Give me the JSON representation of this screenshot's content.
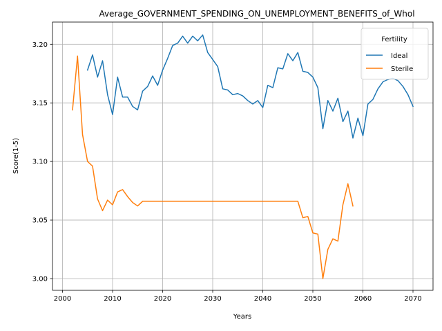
{
  "chart_data": {
    "type": "line",
    "title": "Average_GOVERNMENT_SPENDING_ON_UNEMPLOYMENT_BENEFITS_of_Whol",
    "xlabel": "Years",
    "ylabel": "Score(1-5)",
    "xlim": [
      1998,
      2074
    ],
    "ylim": [
      2.99,
      3.219
    ],
    "xticks": [
      2000,
      2010,
      2020,
      2030,
      2040,
      2050,
      2060,
      2070
    ],
    "yticks": [
      3.0,
      3.05,
      3.1,
      3.15,
      3.2
    ],
    "ytick_labels": [
      "3.00",
      "3.05",
      "3.10",
      "3.15",
      "3.20"
    ],
    "grid": true,
    "legend": {
      "title": "Fertility",
      "placement": "top-right"
    },
    "series": [
      {
        "name": "Ideal",
        "color": "#1f77b4",
        "x": [
          2005,
          2006,
          2007,
          2008,
          2009,
          2010,
          2011,
          2012,
          2013,
          2014,
          2015,
          2016,
          2017,
          2018,
          2019,
          2020,
          2021,
          2022,
          2023,
          2024,
          2025,
          2026,
          2027,
          2028,
          2029,
          2030,
          2031,
          2032,
          2033,
          2034,
          2035,
          2036,
          2037,
          2038,
          2039,
          2040,
          2041,
          2042,
          2043,
          2044,
          2045,
          2046,
          2047,
          2048,
          2049,
          2050,
          2051,
          2052,
          2053,
          2054,
          2055,
          2056,
          2057,
          2058,
          2059,
          2060,
          2061,
          2062,
          2063,
          2064,
          2065,
          2066,
          2067,
          2068,
          2069,
          2070
        ],
        "values": [
          3.178,
          3.191,
          3.172,
          3.186,
          3.157,
          3.14,
          3.172,
          3.155,
          3.155,
          3.147,
          3.144,
          3.16,
          3.164,
          3.173,
          3.165,
          3.178,
          3.188,
          3.199,
          3.201,
          3.207,
          3.201,
          3.207,
          3.203,
          3.208,
          3.193,
          3.187,
          3.181,
          3.162,
          3.161,
          3.157,
          3.158,
          3.156,
          3.152,
          3.149,
          3.152,
          3.146,
          3.165,
          3.163,
          3.18,
          3.179,
          3.192,
          3.186,
          3.193,
          3.177,
          3.176,
          3.172,
          3.163,
          3.128,
          3.152,
          3.143,
          3.154,
          3.134,
          3.143,
          3.12,
          3.137,
          3.122,
          3.149,
          3.153,
          3.162,
          3.168,
          3.17,
          3.171,
          3.169,
          3.164,
          3.157,
          3.147
        ]
      },
      {
        "name": "Sterile",
        "color": "#ff7f0e",
        "x": [
          2002,
          2003,
          2004,
          2005,
          2006,
          2007,
          2008,
          2009,
          2010,
          2011,
          2012,
          2013,
          2014,
          2015,
          2016,
          2017,
          2018,
          2019,
          2020,
          2021,
          2022,
          2023,
          2024,
          2025,
          2026,
          2027,
          2028,
          2029,
          2030,
          2031,
          2032,
          2033,
          2034,
          2035,
          2036,
          2037,
          2038,
          2039,
          2040,
          2041,
          2042,
          2043,
          2044,
          2045,
          2046,
          2047,
          2048,
          2049,
          2050,
          2051,
          2052,
          2053,
          2054,
          2055,
          2056,
          2057,
          2058
        ],
        "values": [
          3.144,
          3.19,
          3.123,
          3.1,
          3.096,
          3.068,
          3.058,
          3.067,
          3.063,
          3.074,
          3.076,
          3.07,
          3.065,
          3.062,
          3.066,
          3.066,
          3.066,
          3.066,
          3.066,
          3.066,
          3.066,
          3.066,
          3.066,
          3.066,
          3.066,
          3.066,
          3.066,
          3.066,
          3.066,
          3.066,
          3.066,
          3.066,
          3.066,
          3.066,
          3.066,
          3.066,
          3.066,
          3.066,
          3.066,
          3.066,
          3.066,
          3.066,
          3.066,
          3.066,
          3.066,
          3.066,
          3.052,
          3.053,
          3.039,
          3.038,
          3.0,
          3.025,
          3.034,
          3.032,
          3.063,
          3.081,
          3.062
        ]
      }
    ]
  }
}
